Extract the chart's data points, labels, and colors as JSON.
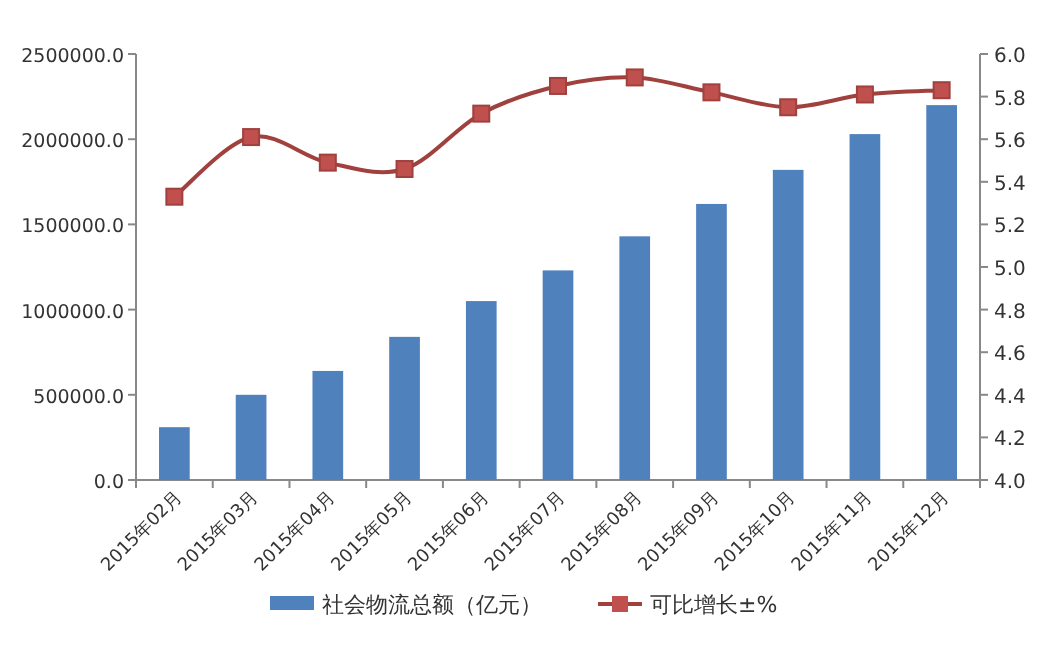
{
  "chart_data": {
    "type": "bar",
    "categories": [
      "2015年02月",
      "2015年03月",
      "2015年04月",
      "2015年05月",
      "2015年06月",
      "2015年07月",
      "2015年08月",
      "2015年09月",
      "2015年10月",
      "2015年11月",
      "2015年12月"
    ],
    "series": [
      {
        "name": "社会物流总额（亿元）",
        "color": "#4f81bd",
        "values": [
          310000,
          500000,
          640000,
          840000,
          1050000,
          1230000,
          1430000,
          1620000,
          1820000,
          2030000,
          2200000
        ]
      },
      {
        "name": "可比增长±%",
        "type": "line",
        "axis": "y2",
        "color": "#a0413e",
        "marker": "square",
        "values": [
          5.33,
          5.61,
          5.49,
          5.46,
          5.72,
          5.85,
          5.89,
          5.82,
          5.75,
          5.81,
          5.83
        ]
      }
    ],
    "ylim": [
      0,
      2500000
    ],
    "yticks": [
      {
        "value": 0,
        "label": "0.0"
      },
      {
        "value": 500000,
        "label": "500000.0"
      },
      {
        "value": 1000000,
        "label": "1000000.0"
      },
      {
        "value": 1500000,
        "label": "1500000.0"
      },
      {
        "value": 2000000,
        "label": "2000000.0"
      },
      {
        "value": 2500000,
        "label": "2500000.0"
      }
    ],
    "y2lim": [
      4,
      6
    ],
    "y2ticks": [
      {
        "value": 4,
        "label": "4.0"
      },
      {
        "value": 4.2,
        "label": "4.2"
      },
      {
        "value": 4.4,
        "label": "4.4"
      },
      {
        "value": 4.6,
        "label": "4.6"
      },
      {
        "value": 4.8,
        "label": "4.8"
      },
      {
        "value": 5,
        "label": "5.0"
      },
      {
        "value": 5.2,
        "label": "5.2"
      },
      {
        "value": 5.4,
        "label": "5.4"
      },
      {
        "value": 5.6,
        "label": "5.6"
      },
      {
        "value": 5.8,
        "label": "5.8"
      },
      {
        "value": 6,
        "label": "6.0"
      }
    ],
    "grid": false,
    "legend": "bottom"
  }
}
